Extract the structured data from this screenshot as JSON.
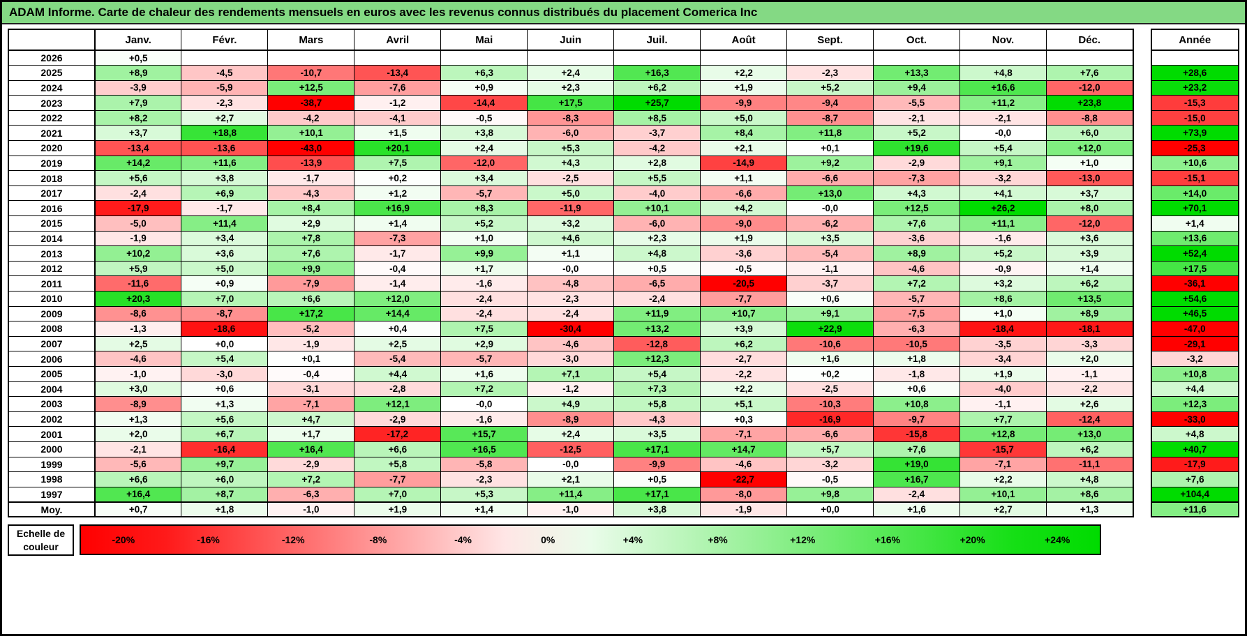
{
  "chart_data": {
    "type": "heatmap",
    "title": "ADAM Informe. Carte de chaleur des rendements mensuels en euros avec les revenus connus distribués du placement Comerica Inc",
    "columns": [
      "Janv.",
      "Févr.",
      "Mars",
      "Avril",
      "Mai",
      "Juin",
      "Juil.",
      "Août",
      "Sept.",
      "Oct.",
      "Nov.",
      "Déc."
    ],
    "annual_column_header": "Année",
    "rows": [
      {
        "label": "2026",
        "values": [
          "+0,5",
          "",
          "",
          "",
          "",
          "",
          "",
          "",
          "",
          "",
          "",
          ""
        ],
        "annual": ""
      },
      {
        "label": "2025",
        "values": [
          "+8,9",
          "-4,5",
          "-10,7",
          "-13,4",
          "+6,3",
          "+2,4",
          "+16,3",
          "+2,2",
          "-2,3",
          "+13,3",
          "+4,8",
          "+7,6"
        ],
        "annual": "+28,6"
      },
      {
        "label": "2024",
        "values": [
          "-3,9",
          "-5,9",
          "+12,5",
          "-7,6",
          "+0,9",
          "+2,3",
          "+6,2",
          "+1,9",
          "+5,2",
          "+9,4",
          "+16,6",
          "-12,0"
        ],
        "annual": "+23,2"
      },
      {
        "label": "2023",
        "values": [
          "+7,9",
          "-2,3",
          "-38,7",
          "-1,2",
          "-14,4",
          "+17,5",
          "+25,7",
          "-9,9",
          "-9,4",
          "-5,5",
          "+11,2",
          "+23,8"
        ],
        "annual": "-15,3"
      },
      {
        "label": "2022",
        "values": [
          "+8,2",
          "+2,7",
          "-4,2",
          "-4,1",
          "-0,5",
          "-8,3",
          "+8,5",
          "+5,0",
          "-8,7",
          "-2,1",
          "-2,1",
          "-8,8"
        ],
        "annual": "-15,0"
      },
      {
        "label": "2021",
        "values": [
          "+3,7",
          "+18,8",
          "+10,1",
          "+1,5",
          "+3,8",
          "-6,0",
          "-3,7",
          "+8,4",
          "+11,8",
          "+5,2",
          "-0,0",
          "+6,0"
        ],
        "annual": "+73,9"
      },
      {
        "label": "2020",
        "values": [
          "-13,4",
          "-13,6",
          "-43,0",
          "+20,1",
          "+2,4",
          "+5,3",
          "-4,2",
          "+2,1",
          "+0,1",
          "+19,6",
          "+5,4",
          "+12,0"
        ],
        "annual": "-25,3"
      },
      {
        "label": "2019",
        "values": [
          "+14,2",
          "+11,6",
          "-13,9",
          "+7,5",
          "-12,0",
          "+4,3",
          "+2,8",
          "-14,9",
          "+9,2",
          "-2,9",
          "+9,1",
          "+1,0"
        ],
        "annual": "+10,6"
      },
      {
        "label": "2018",
        "values": [
          "+5,6",
          "+3,8",
          "-1,7",
          "+0,2",
          "+3,4",
          "-2,5",
          "+5,5",
          "+1,1",
          "-6,6",
          "-7,3",
          "-3,2",
          "-13,0"
        ],
        "annual": "-15,1"
      },
      {
        "label": "2017",
        "values": [
          "-2,4",
          "+6,9",
          "-4,3",
          "+1,2",
          "-5,7",
          "+5,0",
          "-4,0",
          "-6,6",
          "+13,0",
          "+4,3",
          "+4,1",
          "+3,7"
        ],
        "annual": "+14,0"
      },
      {
        "label": "2016",
        "values": [
          "-17,9",
          "-1,7",
          "+8,4",
          "+16,9",
          "+8,3",
          "-11,9",
          "+10,1",
          "+4,2",
          "-0,0",
          "+12,5",
          "+26,2",
          "+8,0"
        ],
        "annual": "+70,1"
      },
      {
        "label": "2015",
        "values": [
          "-5,0",
          "+11,4",
          "+2,9",
          "+1,4",
          "+5,2",
          "+3,2",
          "-6,0",
          "-9,0",
          "-6,2",
          "+7,6",
          "+11,1",
          "-12,0"
        ],
        "annual": "+1,4"
      },
      {
        "label": "2014",
        "values": [
          "-1,9",
          "+3,4",
          "+7,8",
          "-7,3",
          "+1,0",
          "+4,6",
          "+2,3",
          "+1,9",
          "+3,5",
          "-3,6",
          "-1,6",
          "+3,6"
        ],
        "annual": "+13,6"
      },
      {
        "label": "2013",
        "values": [
          "+10,2",
          "+3,6",
          "+7,6",
          "-1,7",
          "+9,9",
          "+1,1",
          "+4,8",
          "-3,6",
          "-5,4",
          "+8,9",
          "+5,2",
          "+3,9"
        ],
        "annual": "+52,4"
      },
      {
        "label": "2012",
        "values": [
          "+5,9",
          "+5,0",
          "+9,9",
          "-0,4",
          "+1,7",
          "-0,0",
          "+0,5",
          "-0,5",
          "-1,1",
          "-4,6",
          "-0,9",
          "+1,4"
        ],
        "annual": "+17,5"
      },
      {
        "label": "2011",
        "values": [
          "-11,6",
          "+0,9",
          "-7,9",
          "-1,4",
          "-1,6",
          "-4,8",
          "-6,5",
          "-20,5",
          "-3,7",
          "+7,2",
          "+3,2",
          "+6,2"
        ],
        "annual": "-36,1"
      },
      {
        "label": "2010",
        "values": [
          "+20,3",
          "+7,0",
          "+6,6",
          "+12,0",
          "-2,4",
          "-2,3",
          "-2,4",
          "-7,7",
          "+0,6",
          "-5,7",
          "+8,6",
          "+13,5"
        ],
        "annual": "+54,6"
      },
      {
        "label": "2009",
        "values": [
          "-8,6",
          "-8,7",
          "+17,2",
          "+14,4",
          "-2,4",
          "-2,4",
          "+11,9",
          "+10,7",
          "+9,1",
          "-7,5",
          "+1,0",
          "+8,9"
        ],
        "annual": "+46,5"
      },
      {
        "label": "2008",
        "values": [
          "-1,3",
          "-18,6",
          "-5,2",
          "+0,4",
          "+7,5",
          "-30,4",
          "+13,2",
          "+3,9",
          "+22,9",
          "-6,3",
          "-18,4",
          "-18,1"
        ],
        "annual": "-47,0"
      },
      {
        "label": "2007",
        "values": [
          "+2,5",
          "+0,0",
          "-1,9",
          "+2,5",
          "+2,9",
          "-4,6",
          "-12,8",
          "+6,2",
          "-10,6",
          "-10,5",
          "-3,5",
          "-3,3"
        ],
        "annual": "-29,1"
      },
      {
        "label": "2006",
        "values": [
          "-4,6",
          "+5,4",
          "+0,1",
          "-5,4",
          "-5,7",
          "-3,0",
          "+12,3",
          "-2,7",
          "+1,6",
          "+1,8",
          "-3,4",
          "+2,0"
        ],
        "annual": "-3,2"
      },
      {
        "label": "2005",
        "values": [
          "-1,0",
          "-3,0",
          "-0,4",
          "+4,4",
          "+1,6",
          "+7,1",
          "+5,4",
          "-2,2",
          "+0,2",
          "-1,8",
          "+1,9",
          "-1,1"
        ],
        "annual": "+10,8"
      },
      {
        "label": "2004",
        "values": [
          "+3,0",
          "+0,6",
          "-3,1",
          "-2,8",
          "+7,2",
          "-1,2",
          "+7,3",
          "+2,2",
          "-2,5",
          "+0,6",
          "-4,0",
          "-2,2"
        ],
        "annual": "+4,4"
      },
      {
        "label": "2003",
        "values": [
          "-8,9",
          "+1,3",
          "-7,1",
          "+12,1",
          "-0,0",
          "+4,9",
          "+5,8",
          "+5,1",
          "-10,3",
          "+10,8",
          "-1,1",
          "+2,6"
        ],
        "annual": "+12,3"
      },
      {
        "label": "2002",
        "values": [
          "+1,3",
          "+5,6",
          "+4,7",
          "-2,9",
          "-1,6",
          "-8,9",
          "-4,3",
          "+0,3",
          "-16,9",
          "-9,7",
          "+7,7",
          "-12,4"
        ],
        "annual": "-33,0"
      },
      {
        "label": "2001",
        "values": [
          "+2,0",
          "+6,7",
          "+1,7",
          "-17,2",
          "+15,7",
          "+2,4",
          "+3,5",
          "-7,1",
          "-6,6",
          "-15,8",
          "+12,8",
          "+13,0"
        ],
        "annual": "+4,8"
      },
      {
        "label": "2000",
        "values": [
          "-2,1",
          "-16,4",
          "+16,4",
          "+6,6",
          "+16,5",
          "-12,5",
          "+17,1",
          "+14,7",
          "+5,7",
          "+7,6",
          "-15,7",
          "+6,2"
        ],
        "annual": "+40,7"
      },
      {
        "label": "1999",
        "values": [
          "-5,6",
          "+9,7",
          "-2,9",
          "+5,8",
          "-5,8",
          "-0,0",
          "-9,9",
          "-4,6",
          "-3,2",
          "+19,0",
          "-7,1",
          "-11,1"
        ],
        "annual": "-17,9"
      },
      {
        "label": "1998",
        "values": [
          "+6,6",
          "+6,0",
          "+7,2",
          "-7,7",
          "-2,3",
          "+2,1",
          "+0,5",
          "-22,7",
          "-0,5",
          "+16,7",
          "+2,2",
          "+4,8"
        ],
        "annual": "+7,6"
      },
      {
        "label": "1997",
        "values": [
          "+16,4",
          "+8,7",
          "-6,3",
          "+7,0",
          "+5,3",
          "+11,4",
          "+17,1",
          "-8,0",
          "+9,8",
          "-2,4",
          "+10,1",
          "+8,6"
        ],
        "annual": "+104,4"
      }
    ],
    "average_row": {
      "label": "Moy.",
      "values": [
        "+0,7",
        "+1,8",
        "-1,0",
        "+1,9",
        "+1,4",
        "-1,0",
        "+3,8",
        "-1,9",
        "+0,0",
        "+1,6",
        "+2,7",
        "+1,3"
      ],
      "annual": "+11,6"
    },
    "color_scale": {
      "label": "Echelle de couleur",
      "stops": [
        "-20%",
        "-16%",
        "-12%",
        "-8%",
        "-4%",
        "0%",
        "+4%",
        "+8%",
        "+12%",
        "+16%",
        "+20%",
        "+24%"
      ]
    }
  },
  "colors": {
    "title_bg": "#84D984",
    "max_red": "#FF0000",
    "zero": "#FFFFFF",
    "max_green": "#00DC00",
    "border": "#000000"
  }
}
